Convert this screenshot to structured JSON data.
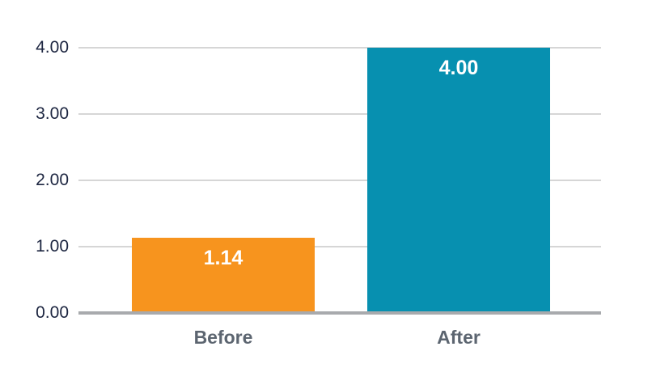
{
  "chart_data": {
    "type": "bar",
    "categories": [
      "Before",
      "After"
    ],
    "values": [
      1.14,
      4.0
    ],
    "value_labels": [
      "1.14",
      "4.00"
    ],
    "bar_colors": [
      "#F7941E",
      "#0790B0"
    ],
    "ylim": [
      0,
      4
    ],
    "yticks": [
      "0.00",
      "1.00",
      "2.00",
      "3.00",
      "4.00"
    ],
    "grid": "horizontal gridlines on",
    "legend": "none"
  },
  "colors": {
    "background": "#ffffff",
    "gridline": "#d6d6d6",
    "baseline": "#a8aaad",
    "ytick_text": "#1c2540",
    "category_text": "#5c6570",
    "value_text": "#ffffff",
    "bar_before": "#F7941E",
    "bar_after": "#0790B0"
  }
}
